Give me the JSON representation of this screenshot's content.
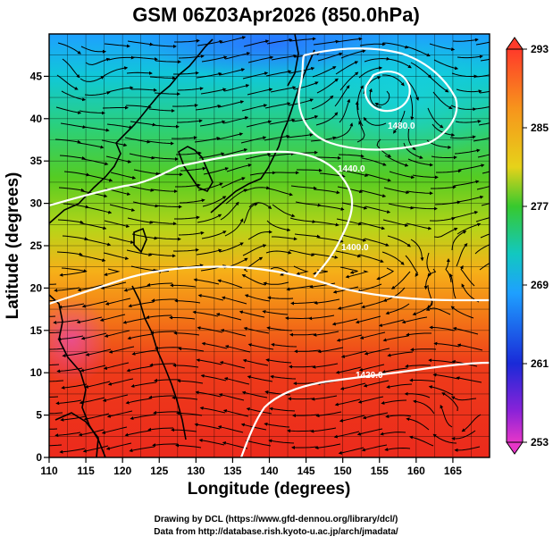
{
  "title": "GSM 06Z03Apr2026 (850.0hPa)",
  "xlabel": "Longitude (degrees)",
  "ylabel": "Latitude (degrees)",
  "x_ticks": [
    "110",
    "115",
    "120",
    "125",
    "130",
    "135",
    "140",
    "145",
    "150",
    "155",
    "160",
    "165"
  ],
  "y_ticks": [
    "0",
    "5",
    "10",
    "15",
    "20",
    "25",
    "30",
    "35",
    "40",
    "45"
  ],
  "colorbar_ticks": [
    "293",
    "285",
    "277",
    "269",
    "261",
    "253"
  ],
  "contour_labels": [
    "1420.0",
    "1440.0",
    "1400.0",
    "1480.0"
  ],
  "credits": {
    "line1": "Drawing by DCL (https://www.gfd-dennou.org/library/dcl/)",
    "line2": "Data from http://database.rish.kyoto-u.ac.jp/arch/jmadata/"
  },
  "map": {
    "lon_range": [
      110,
      170
    ],
    "lat_range": [
      0,
      50
    ],
    "variable": "temperature (K) shaded, geopotential height contours, wind streamlines",
    "colorbar_range": [
      253,
      293
    ],
    "colors": {
      "warm": "#ee2a1a",
      "mid": "#33cc33",
      "cold": "#1e90ff",
      "contour": "#ffffff"
    }
  }
}
